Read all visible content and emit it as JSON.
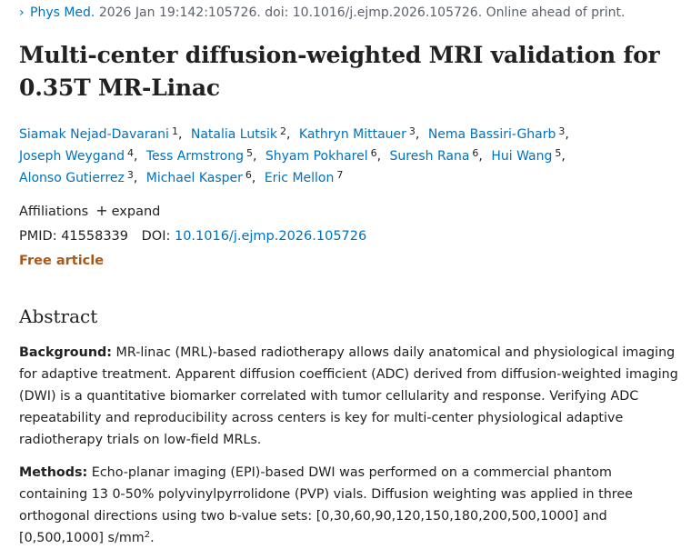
{
  "citation": {
    "journal": "Phys Med.",
    "details": "2026 Jan 19:142:105726. doi: 10.1016/j.ejmp.2026.105726. Online ahead of print."
  },
  "title": "Multi-center diffusion-weighted MRI validation for 0.35T MR-Linac",
  "authors": [
    {
      "name": "Siamak Nejad-Davarani",
      "aff": "1"
    },
    {
      "name": "Natalia Lutsik",
      "aff": "2"
    },
    {
      "name": "Kathryn Mittauer",
      "aff": "3"
    },
    {
      "name": "Nema Bassiri-Gharb",
      "aff": "3"
    },
    {
      "name": "Joseph Weygand",
      "aff": "4"
    },
    {
      "name": "Tess Armstrong",
      "aff": "5"
    },
    {
      "name": "Shyam Pokharel",
      "aff": "6"
    },
    {
      "name": "Suresh Rana",
      "aff": "6"
    },
    {
      "name": "Hui Wang",
      "aff": "5"
    },
    {
      "name": "Alonso Gutierrez",
      "aff": "3"
    },
    {
      "name": "Michael Kasper",
      "aff": "6"
    },
    {
      "name": "Eric Mellon",
      "aff": "7"
    }
  ],
  "affiliations": {
    "label": "Affiliations",
    "plus": "+",
    "expand": "expand"
  },
  "ids": {
    "pmid_label": "PMID:",
    "pmid": "41558339",
    "doi_label": "DOI:",
    "doi": "10.1016/j.ejmp.2026.105726"
  },
  "free_article": "Free article",
  "abstract": {
    "heading": "Abstract",
    "background_label": "Background:",
    "background_text": "MR-linac (MRL)-based radiotherapy allows daily anatomical and physiological imaging for adaptive treatment. Apparent diffusion coefficient (ADC) derived from diffusion-weighted imaging (DWI) is a quantitative biomarker correlated with tumor cellularity and response. Verifying ADC repeatability and reproducibility across centers is key for multi-center physiological adaptive radiotherapy trials on low-field MRLs.",
    "methods_label": "Methods:",
    "methods_text": "Echo-planar imaging (EPI)-based DWI was performed on a commercial phantom containing 13 0-50% polyvinylpyrrolidone (PVP) vials. Diffusion weighting was applied in three orthogonal directions using two b-value sets: [0,30,60,90,120,150,180,200,500,1000] and [0,500,1000] s/mm",
    "methods_sup": "2",
    "methods_end": "."
  }
}
